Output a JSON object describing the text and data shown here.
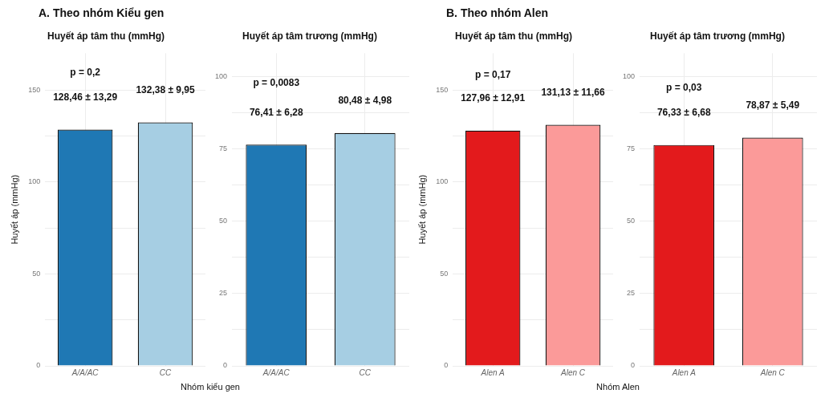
{
  "chart_data": [
    {
      "type": "bar",
      "title": "A. Theo nhóm Kiểu gen",
      "subtitle": "Huyết áp tâm thu (mmHg)",
      "xlabel": "Nhóm kiểu gen",
      "ylabel": "Huyết áp (mmHg)",
      "categories": [
        "A/A/AC",
        "CC"
      ],
      "values": [
        128.46,
        132.38
      ],
      "colors": [
        "#1f78b4",
        "#a6cee3"
      ],
      "value_labels": [
        "128,46 ± 13,29",
        "132,38 ± 9,95"
      ],
      "annotations": [
        "p = 0,2"
      ],
      "ylim": [
        0,
        170
      ],
      "yticks": [
        0,
        {
          "value": 25,
          "label": null
        },
        50,
        {
          "value": 75,
          "label": null
        },
        100,
        {
          "value": 125,
          "label": null
        },
        150
      ],
      "grid": true
    },
    {
      "type": "bar",
      "title": "Huyết áp tâm trương (mmHg)",
      "categories": [
        "A/A/AC",
        "CC"
      ],
      "values": [
        76.41,
        80.48
      ],
      "colors": [
        "#1f78b4",
        "#a6cee3"
      ],
      "value_labels": [
        "76,41 ± 6,28",
        "80,48 ± 4,98"
      ],
      "annotations": [
        "p = 0,0083"
      ],
      "ylim": [
        0,
        108
      ],
      "yticks": [
        0,
        {
          "value": 12.5,
          "label": null
        },
        25,
        {
          "value": 37.5,
          "label": null
        },
        50,
        {
          "value": 62.5,
          "label": null
        },
        75,
        {
          "value": 87.5,
          "label": null
        },
        100
      ],
      "grid": true
    },
    {
      "type": "bar",
      "title": "B. Theo nhóm Alen",
      "subtitle": "Huyết áp tâm thu (mmHg)",
      "xlabel": "Nhóm Alen",
      "ylabel": "Huyết áp (mmHg)",
      "categories": [
        "Alen A",
        "Alen C"
      ],
      "values": [
        127.96,
        131.13
      ],
      "colors": [
        "#e31a1c",
        "#fb9a99"
      ],
      "value_labels": [
        "127,96 ± 12,91",
        "131,13 ± 11,66"
      ],
      "annotations": [
        "p = 0,17"
      ],
      "ylim": [
        0,
        170
      ],
      "yticks": [
        0,
        {
          "value": 25,
          "label": null
        },
        50,
        {
          "value": 75,
          "label": null
        },
        100,
        {
          "value": 125,
          "label": null
        },
        150
      ],
      "grid": true
    },
    {
      "type": "bar",
      "title": "Huyết áp tâm trương (mmHg)",
      "categories": [
        "Alen A",
        "Alen C"
      ],
      "values": [
        76.33,
        78.87
      ],
      "colors": [
        "#e31a1c",
        "#fb9a99"
      ],
      "value_labels": [
        "76,33 ± 6,68",
        "78,87 ± 5,49"
      ],
      "annotations": [
        "p = 0,03"
      ],
      "ylim": [
        0,
        108
      ],
      "yticks": [
        0,
        {
          "value": 12.5,
          "label": null
        },
        25,
        {
          "value": 37.5,
          "label": null
        },
        50,
        {
          "value": 62.5,
          "label": null
        },
        75,
        {
          "value": 87.5,
          "label": null
        },
        100
      ],
      "grid": true
    }
  ]
}
